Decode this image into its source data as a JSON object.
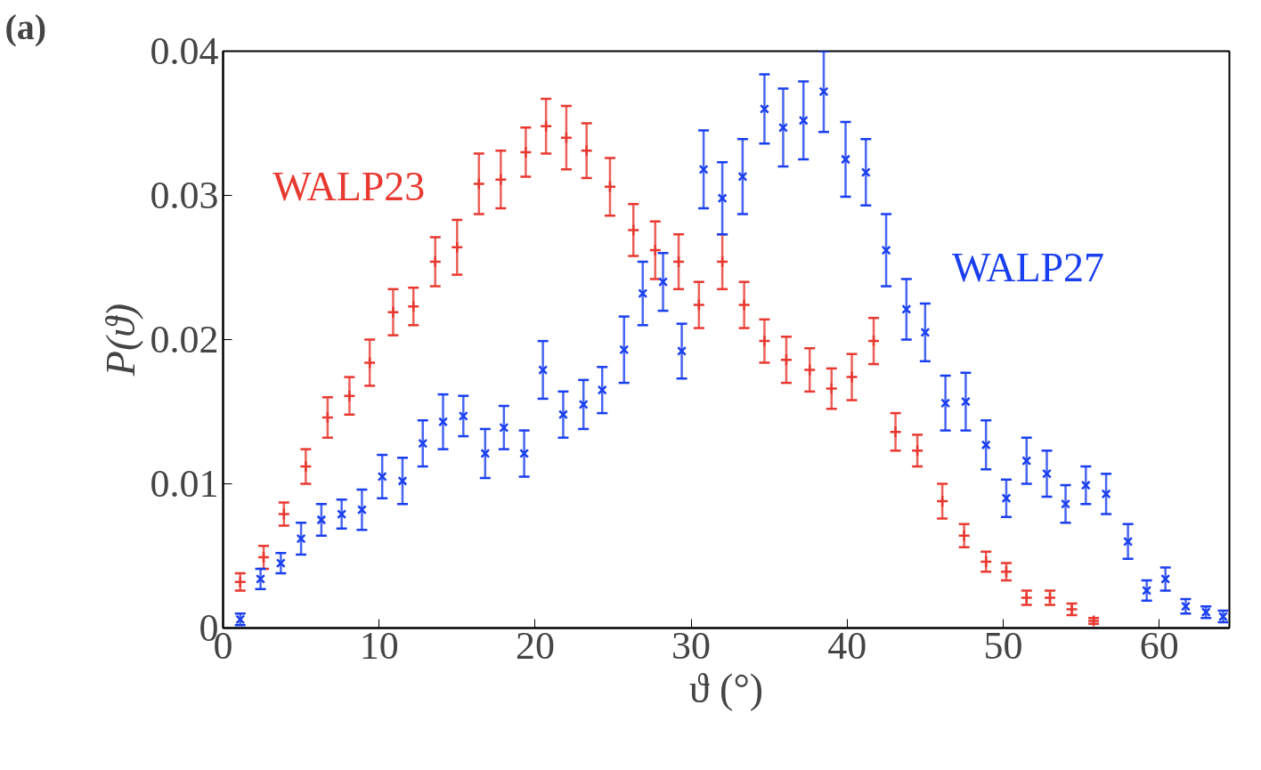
{
  "chart_data": {
    "type": "scatter",
    "xlabel": "ϑ (°)",
    "ylabel": "P(ϑ)",
    "annotations": [
      "(a)"
    ],
    "xlim": [
      0,
      64.5
    ],
    "ylim": [
      0,
      0.04
    ],
    "xticks": [
      0,
      10,
      20,
      30,
      40,
      50,
      60
    ],
    "yticks": [
      {
        "value": 0,
        "label": "0"
      },
      {
        "value": 0.01,
        "label": "0.01"
      },
      {
        "value": 0.02,
        "label": "0.02"
      },
      {
        "value": 0.03,
        "label": "0.03"
      },
      {
        "value": 0.04,
        "label": "0.04"
      }
    ],
    "grid": false,
    "legend": false,
    "marker": "cross",
    "series": [
      {
        "name": "WALP23",
        "color": "#e8382f",
        "x": [
          1.1,
          2.6,
          3.9,
          5.3,
          6.7,
          8.1,
          9.4,
          10.9,
          12.2,
          13.6,
          15.0,
          16.4,
          17.8,
          19.4,
          20.7,
          22.0,
          23.3,
          24.8,
          26.3,
          27.7,
          29.2,
          30.5,
          32.0,
          33.4,
          34.7,
          36.1,
          37.6,
          39.0,
          40.3,
          41.7,
          43.1,
          44.5,
          46.1,
          47.5,
          48.9,
          50.2,
          51.5,
          53.0,
          54.4,
          55.8
        ],
        "values": [
          0.0032,
          0.0049,
          0.0079,
          0.0112,
          0.0146,
          0.0161,
          0.0184,
          0.0219,
          0.0223,
          0.0254,
          0.0264,
          0.0308,
          0.0311,
          0.033,
          0.0348,
          0.034,
          0.0331,
          0.0306,
          0.0276,
          0.0262,
          0.0254,
          0.0224,
          0.0254,
          0.0224,
          0.0199,
          0.0186,
          0.0179,
          0.0166,
          0.0174,
          0.0199,
          0.0136,
          0.0123,
          0.0088,
          0.0064,
          0.0046,
          0.0039,
          0.0021,
          0.0021,
          0.0013,
          0.0005
        ],
        "errors": [
          0.0006,
          0.0008,
          0.0008,
          0.0012,
          0.0014,
          0.0013,
          0.0016,
          0.0016,
          0.0013,
          0.0017,
          0.0019,
          0.0021,
          0.002,
          0.0017,
          0.0019,
          0.0022,
          0.0019,
          0.002,
          0.0018,
          0.002,
          0.0019,
          0.0016,
          0.0019,
          0.0016,
          0.0015,
          0.0016,
          0.0015,
          0.0014,
          0.0016,
          0.0016,
          0.0013,
          0.0011,
          0.0012,
          0.0008,
          0.0007,
          0.0006,
          0.0005,
          0.0005,
          0.0004,
          0.0002
        ]
      },
      {
        "name": "WALP27",
        "color": "#1a3ff0",
        "x": [
          1.1,
          2.4,
          3.7,
          5.0,
          6.3,
          7.6,
          8.9,
          10.2,
          11.5,
          12.8,
          14.1,
          15.4,
          16.8,
          18.0,
          19.3,
          20.5,
          21.8,
          23.1,
          24.3,
          25.7,
          26.9,
          28.2,
          29.4,
          30.8,
          32.0,
          33.3,
          34.7,
          35.9,
          37.2,
          38.5,
          39.9,
          41.2,
          42.5,
          43.8,
          45.0,
          46.3,
          47.6,
          48.9,
          50.2,
          51.5,
          52.8,
          54.0,
          55.3,
          56.6,
          58.0,
          59.2,
          60.4,
          61.7,
          63.0,
          64.1
        ],
        "values": [
          0.0006,
          0.0034,
          0.0045,
          0.0062,
          0.0075,
          0.0079,
          0.0082,
          0.0105,
          0.0102,
          0.0128,
          0.0143,
          0.0147,
          0.0121,
          0.0139,
          0.0121,
          0.0179,
          0.0148,
          0.0155,
          0.0165,
          0.0193,
          0.0232,
          0.024,
          0.0192,
          0.0318,
          0.0298,
          0.0313,
          0.036,
          0.0347,
          0.0352,
          0.0372,
          0.0325,
          0.0316,
          0.0262,
          0.0221,
          0.0205,
          0.0156,
          0.0157,
          0.0127,
          0.009,
          0.0116,
          0.0107,
          0.0086,
          0.0099,
          0.0093,
          0.006,
          0.0026,
          0.0034,
          0.0015,
          0.0011,
          0.0008
        ],
        "errors": [
          0.0004,
          0.0007,
          0.0007,
          0.0011,
          0.0011,
          0.001,
          0.0014,
          0.0015,
          0.0016,
          0.0016,
          0.0019,
          0.0014,
          0.0017,
          0.0015,
          0.0016,
          0.002,
          0.0016,
          0.0017,
          0.0016,
          0.0023,
          0.0022,
          0.002,
          0.0019,
          0.0027,
          0.0025,
          0.0026,
          0.0024,
          0.0027,
          0.0027,
          0.0028,
          0.0026,
          0.0023,
          0.0025,
          0.0021,
          0.002,
          0.0019,
          0.002,
          0.0017,
          0.0013,
          0.0016,
          0.0016,
          0.0013,
          0.0013,
          0.0014,
          0.0012,
          0.0007,
          0.0008,
          0.0005,
          0.0004,
          0.0004
        ]
      }
    ]
  }
}
